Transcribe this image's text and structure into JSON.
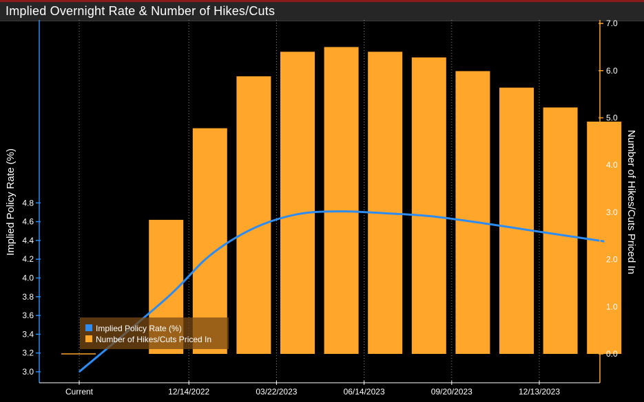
{
  "title": "Implied Overnight Rate & Number of Hikes/Cuts",
  "colors": {
    "background": "#000000",
    "bar": "#ffa62b",
    "line": "#2e8cf0",
    "axis_left": "#2e8cf0",
    "axis_right": "#ffa62b",
    "grid": "#8c8c8c",
    "legend_bg": "#7a4a14"
  },
  "chart_data": {
    "type": "bar",
    "title": "Implied Overnight Rate & Number of Hikes/Cuts",
    "ylabel": "Implied Policy Rate (%)",
    "y2label": "Number of Hikes/Cuts Priced In",
    "ylim": [
      3.0,
      4.8
    ],
    "y2lim": [
      -0.6,
      7.0
    ],
    "yticks": [
      "3.0",
      "3.2",
      "3.4",
      "3.6",
      "3.8",
      "4.0",
      "4.2",
      "4.4",
      "4.6",
      "4.8"
    ],
    "y2ticks": [
      "0.0",
      "1.0",
      "2.0",
      "3.0",
      "4.0",
      "5.0",
      "6.0",
      "7.0"
    ],
    "x_tick_labels": [
      "Current",
      "12/14/2022",
      "03/22/2023",
      "06/14/2023",
      "09/20/2023",
      "12/13/2023"
    ],
    "grid": true,
    "legend_position": "bottom-left",
    "series": [
      {
        "name": "Implied Policy Rate (%)",
        "type": "line",
        "axis": "left",
        "values": [
          3.0,
          3.78,
          4.24,
          4.53,
          4.68,
          4.71,
          4.69,
          4.66,
          4.6,
          4.53,
          4.46,
          4.39
        ]
      },
      {
        "name": "Number of Hikes/Cuts Priced In",
        "type": "bar",
        "axis": "right",
        "values": [
          0.0,
          2.84,
          4.78,
          5.88,
          6.4,
          6.5,
          6.4,
          6.28,
          5.99,
          5.64,
          5.22,
          4.92
        ]
      }
    ]
  }
}
